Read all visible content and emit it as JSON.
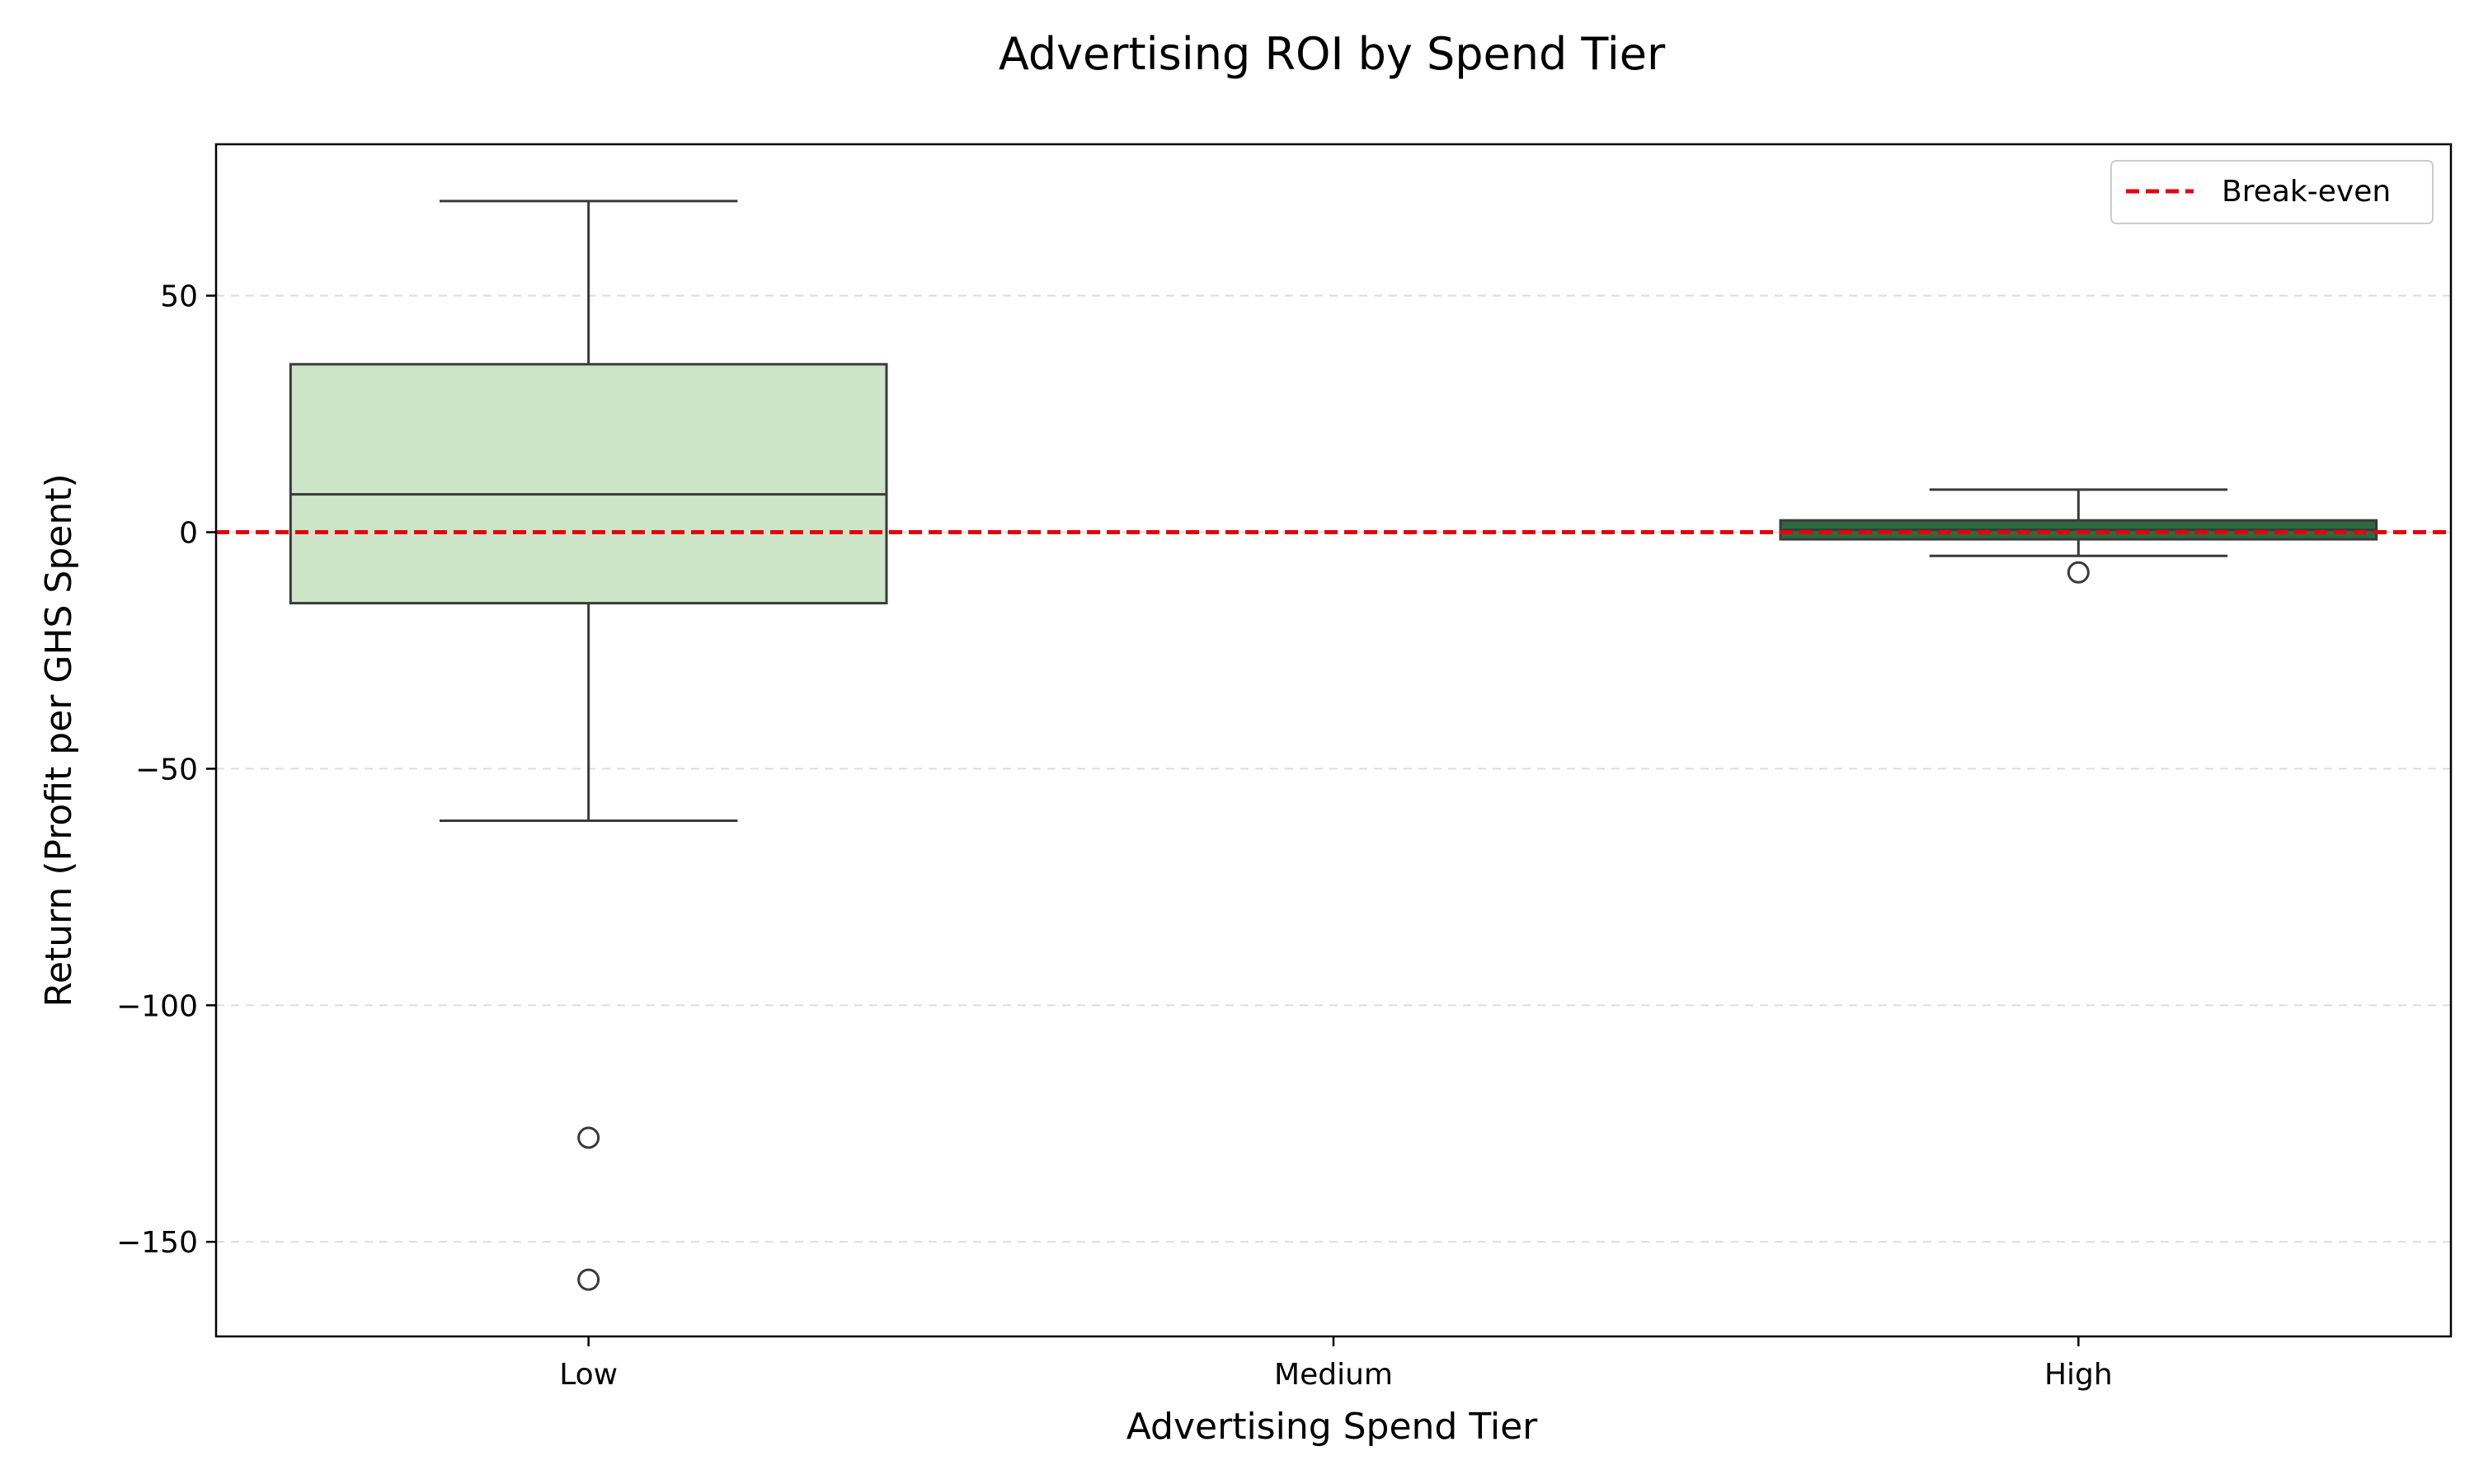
{
  "chart_data": {
    "type": "box",
    "title": "Advertising ROI by Spend Tier",
    "xlabel": "Advertising Spend Tier",
    "ylabel": "Return (Profit per GHS Spent)",
    "ylim": [
      -170,
      82
    ],
    "yticks": [
      50,
      0,
      -50,
      -100,
      -150
    ],
    "ytick_labels": [
      "50",
      "0",
      "−50",
      "−100",
      "−150"
    ],
    "grid": "horizontal dashed",
    "categories": [
      "Low",
      "Medium",
      "High"
    ],
    "boxes": [
      {
        "category": "Low",
        "whisker_low": -61,
        "q1": -15,
        "median": 8,
        "q3": 35.5,
        "whisker_high": 70,
        "outliers": [
          -128,
          -158
        ],
        "color": "#cce5c7"
      },
      {
        "category": "Medium",
        "whisker_low": null,
        "q1": null,
        "median": null,
        "q3": null,
        "whisker_high": null,
        "outliers": [],
        "color": "#7fbf7b"
      },
      {
        "category": "High",
        "whisker_low": -5,
        "q1": -1.5,
        "median": 0.5,
        "q3": 2.5,
        "whisker_high": 9,
        "outliers": [
          -8.5
        ],
        "color": "#2d6a3e"
      }
    ],
    "reference_line": {
      "y": 0,
      "label": "Break-even",
      "color": "#e8000b",
      "style": "dashed"
    },
    "legend": {
      "position": "top-right",
      "entries": [
        "Break-even"
      ]
    }
  }
}
